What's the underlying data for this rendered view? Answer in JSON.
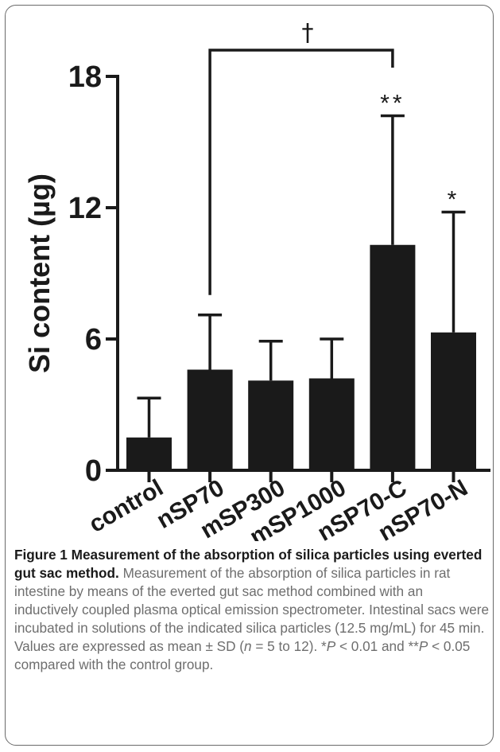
{
  "chart_data": {
    "type": "bar",
    "ylabel": "Si content (µg)",
    "ylim": [
      0,
      18
    ],
    "yticks": [
      0,
      6,
      12,
      18
    ],
    "categories": [
      "control",
      "nSP70",
      "mSP300",
      "mSP1000",
      "nSP70-C",
      "nSP70-N"
    ],
    "values": [
      1.5,
      4.6,
      4.1,
      4.2,
      10.3,
      6.3
    ],
    "errors": [
      1.8,
      2.5,
      1.8,
      1.8,
      5.9,
      5.5
    ],
    "annotations": [
      "",
      "",
      "",
      "",
      "**",
      "*"
    ],
    "bracket": {
      "from": "nSP70",
      "to": "nSP70-C",
      "label": "†"
    },
    "bar_color": "#1a1a1a"
  },
  "caption": {
    "title": "Figure 1 Measurement of the absorption of silica particles using everted gut sac method.",
    "body": "Measurement of the absorption of silica particles in rat intestine by means of the everted gut sac method combined with an inductively coupled plasma optical emission spectrometer. Intestinal sacs were incubated in solutions of the indicated silica particles (12.5 mg/mL) for 45 min. Values are expressed as mean ± SD (",
    "n_sym": "n",
    "n_range": " = 5 to 12). *",
    "p_sym_1": "P",
    "p1": " < 0.01 and **",
    "p_sym_2": "P",
    "p2": " < 0.05 compared with the control group."
  }
}
